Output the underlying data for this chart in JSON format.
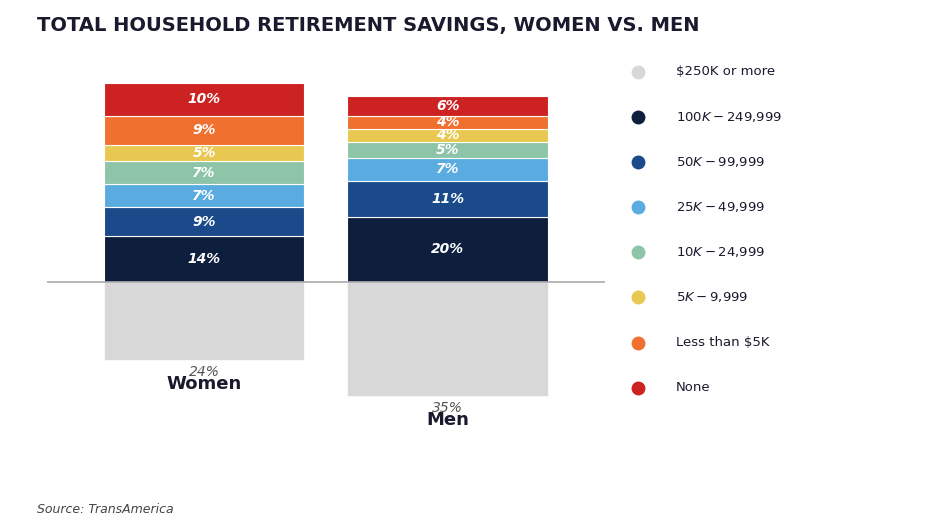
{
  "title": "TOTAL HOUSEHOLD RETIREMENT SAVINGS, WOMEN VS. MEN",
  "source": "Source: TransAmerica",
  "categories": [
    "Women",
    "Men"
  ],
  "segments": [
    {
      "label": "$100K-$249,999",
      "color": "#0d1f3c",
      "values": [
        14,
        20
      ]
    },
    {
      "label": "$50K-$99,999",
      "color": "#1a4a8a",
      "values": [
        9,
        11
      ]
    },
    {
      "label": "$25K-$49,999",
      "color": "#5aace0",
      "values": [
        7,
        7
      ]
    },
    {
      "label": "$10K-$24,999",
      "color": "#8ec4a8",
      "values": [
        7,
        5
      ]
    },
    {
      "label": "$5K-$9,999",
      "color": "#e8c850",
      "values": [
        5,
        4
      ]
    },
    {
      "label": "Less than $5K",
      "color": "#f07030",
      "values": [
        9,
        4
      ]
    },
    {
      "label": "None",
      "color": "#cc2222",
      "values": [
        10,
        6
      ]
    }
  ],
  "bottom_segment": {
    "label": "$250K or more",
    "color": "#d8d8d8",
    "values": [
      24,
      35
    ]
  },
  "legend_order": [
    "$250K or more",
    "$100K-$249,999",
    "$50K-$99,999",
    "$25K-$49,999",
    "$10K-$24,999",
    "$5K-$9,999",
    "Less than $5K",
    "None"
  ],
  "legend_colors": [
    "#d8d8d8",
    "#0d1f3c",
    "#1a4a8a",
    "#5aace0",
    "#8ec4a8",
    "#e8c850",
    "#f07030",
    "#cc2222"
  ],
  "bar_positions": [
    0.22,
    0.56
  ],
  "bar_width": 0.28,
  "title_fontsize": 14,
  "label_fontsize": 10,
  "tick_fontsize": 13,
  "source_fontsize": 9,
  "below_label_fontsize": 10
}
